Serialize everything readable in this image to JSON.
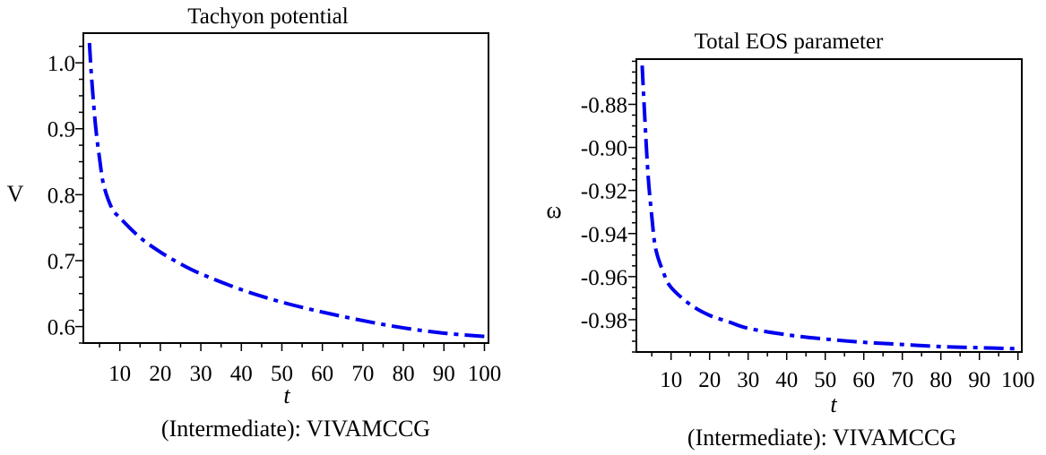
{
  "chart_data": [
    {
      "type": "line",
      "title": "Tachyon potential",
      "xlabel": "t",
      "ylabel": "V",
      "caption": "(Intermediate): VIVAMCCG",
      "xlim": [
        1,
        101
      ],
      "ylim": [
        0.575,
        1.045
      ],
      "x_ticks": [
        10,
        20,
        30,
        40,
        50,
        60,
        70,
        80,
        90,
        100
      ],
      "y_ticks": [
        0.6,
        0.7,
        0.8,
        0.9,
        1.0
      ],
      "x_tick_labels": [
        "10",
        "20",
        "30",
        "40",
        "50",
        "60",
        "70",
        "80",
        "90",
        "100"
      ],
      "y_tick_labels": [
        "0.6",
        "0.7",
        "0.8",
        "0.9",
        "1.0"
      ],
      "grid": false,
      "series": [
        {
          "color": "#0000ee",
          "x": [
            2.5,
            3,
            4,
            5,
            6,
            8,
            10,
            15,
            20,
            25,
            30,
            40,
            50,
            60,
            70,
            80,
            90,
            100
          ],
          "y": [
            1.03,
            0.98,
            0.905,
            0.855,
            0.815,
            0.78,
            0.765,
            0.735,
            0.713,
            0.695,
            0.68,
            0.656,
            0.637,
            0.622,
            0.609,
            0.598,
            0.59,
            0.585
          ]
        }
      ]
    },
    {
      "type": "line",
      "title": "Total EOS parameter",
      "xlabel": "t",
      "ylabel": "ω",
      "caption": "(Intermediate):  VIVAMCCG",
      "xlim": [
        1,
        101
      ],
      "ylim": [
        -0.995,
        -0.859
      ],
      "x_ticks": [
        10,
        20,
        30,
        40,
        50,
        60,
        70,
        80,
        90,
        100
      ],
      "y_ticks": [
        -0.98,
        -0.96,
        -0.94,
        -0.92,
        -0.9,
        -0.88
      ],
      "x_tick_labels": [
        "10",
        "20",
        "30",
        "40",
        "50",
        "60",
        "70",
        "80",
        "90",
        "100"
      ],
      "y_tick_labels": [
        "-0.98",
        "-0.96",
        "-0.94",
        "-0.92",
        "-0.90",
        "-0.88"
      ],
      "grid": false,
      "series": [
        {
          "color": "#0000ee",
          "x": [
            2.5,
            3,
            4,
            5,
            6,
            8,
            10,
            15,
            20,
            25,
            30,
            40,
            50,
            60,
            70,
            80,
            90,
            100
          ],
          "y": [
            -0.862,
            -0.88,
            -0.912,
            -0.932,
            -0.947,
            -0.958,
            -0.965,
            -0.973,
            -0.978,
            -0.981,
            -0.984,
            -0.987,
            -0.989,
            -0.9905,
            -0.9915,
            -0.9925,
            -0.993,
            -0.9935
          ]
        }
      ]
    }
  ]
}
